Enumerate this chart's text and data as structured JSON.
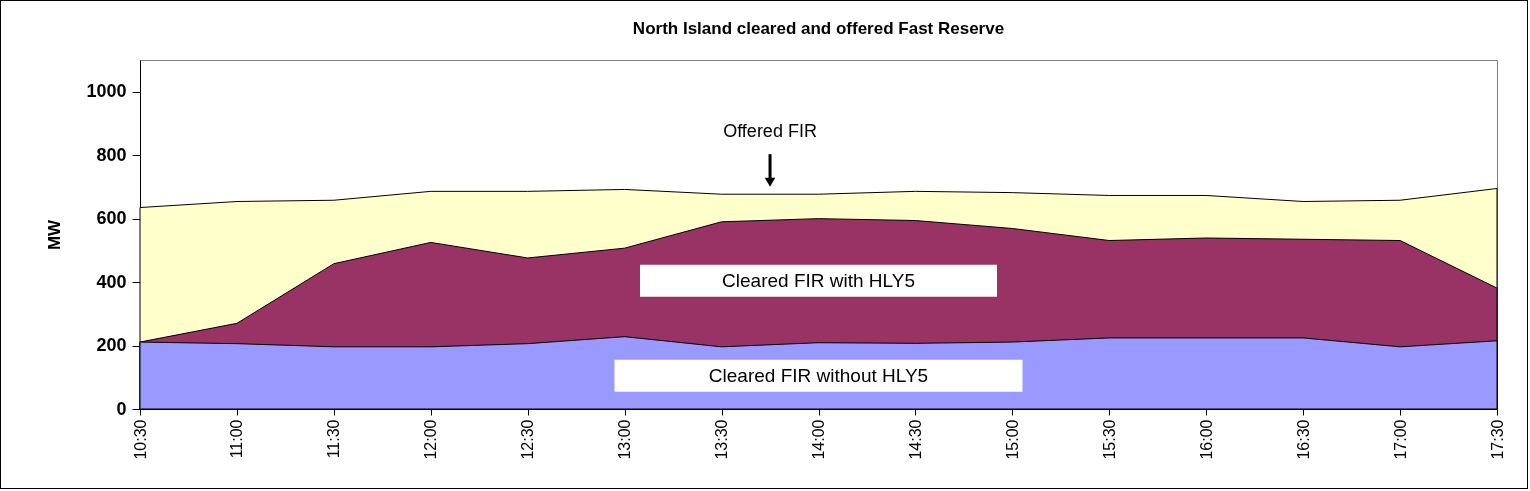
{
  "chart_data": {
    "type": "area",
    "title": "North Island cleared and offered Fast Reserve",
    "ylabel": "MW",
    "x": [
      10.5,
      11,
      11.5,
      12,
      12.5,
      13,
      13.5,
      14,
      14.5,
      15,
      15.5,
      16,
      16.5,
      17,
      17.5
    ],
    "xlim": [
      10.5,
      17.5
    ],
    "xticks": [
      {
        "value": 10.5,
        "label": "10:30"
      },
      {
        "value": 11,
        "label": "11:00"
      },
      {
        "value": 11.5,
        "label": "11:30"
      },
      {
        "value": 12,
        "label": "12:00"
      },
      {
        "value": 12.5,
        "label": "12:30"
      },
      {
        "value": 13,
        "label": "13:00"
      },
      {
        "value": 13.5,
        "label": "13:30"
      },
      {
        "value": 14,
        "label": "14:00"
      },
      {
        "value": 14.5,
        "label": "14:30"
      },
      {
        "value": 15,
        "label": "15:00"
      },
      {
        "value": 15.5,
        "label": "15:30"
      },
      {
        "value": 16,
        "label": "16:00"
      },
      {
        "value": 16.5,
        "label": "16:30"
      },
      {
        "value": 17,
        "label": "17:00"
      },
      {
        "value": 17.5,
        "label": "17:30"
      }
    ],
    "ylim": [
      0,
      1100
    ],
    "yticks": [
      0,
      200,
      400,
      600,
      800,
      1000
    ],
    "grid": false,
    "series": [
      {
        "color": "#ffffcc",
        "values": [
          635,
          654,
          658,
          686,
          686,
          692,
          677,
          677,
          686,
          682,
          673,
          673,
          654,
          658,
          695
        ]
      },
      {
        "name": "Cleared FIR with HLY5",
        "color": "#993366",
        "values": [
          211,
          270,
          458,
          525,
          476,
          507,
          590,
          600,
          594,
          569,
          531,
          539,
          535,
          531,
          381
        ]
      },
      {
        "name": "Cleared FIR without HLY5",
        "color": "#9999ff",
        "values": [
          211,
          206,
          196,
          196,
          206,
          228,
          196,
          209,
          207,
          211,
          224,
          224,
          224,
          196,
          215
        ]
      }
    ],
    "annotations": [
      {
        "text": "Offered FIR",
        "x": 13.75,
        "y": 677
      }
    ]
  }
}
